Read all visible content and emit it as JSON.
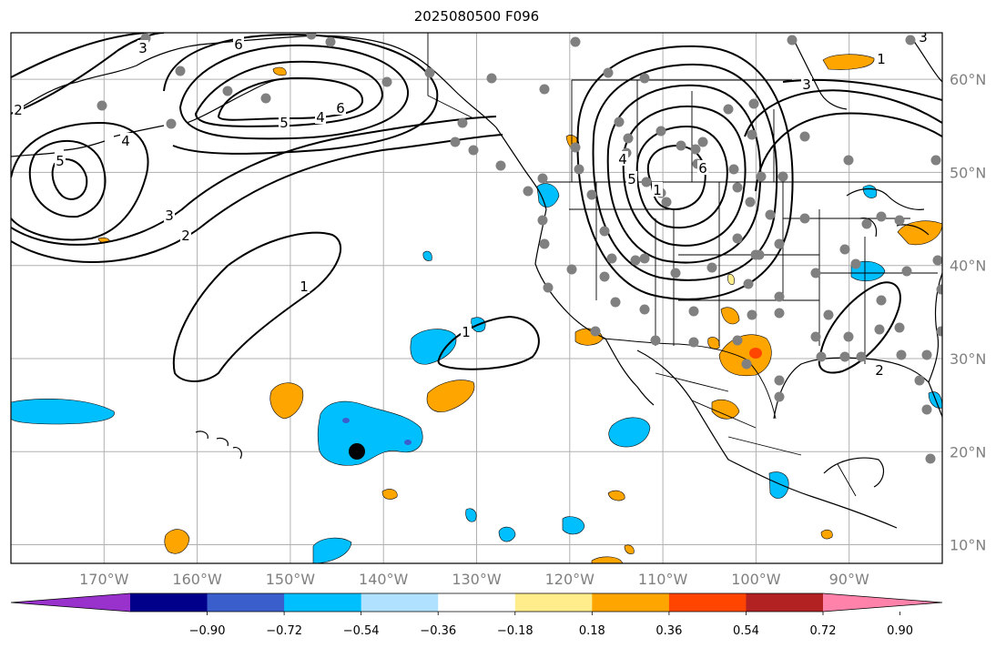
{
  "title": "2025080500 F096",
  "map": {
    "lon_range": [
      -180,
      -80
    ],
    "lat_range": [
      8,
      65
    ],
    "lon_ticks": [
      "170°W",
      "160°W",
      "150°W",
      "140°W",
      "130°W",
      "120°W",
      "110°W",
      "100°W",
      "90°W"
    ],
    "lat_ticks": [
      "60°N",
      "50°N",
      "40°N",
      "30°N",
      "20°N",
      "10°N"
    ],
    "grid": true,
    "contour_labels": [
      "3",
      "6",
      "4",
      "5",
      "6",
      "5",
      "4",
      "3",
      "2",
      "1",
      "1",
      "1",
      "6",
      "5",
      "4",
      "3",
      "2",
      "1",
      "3",
      "2"
    ],
    "station_marker_color": "#808080",
    "highlight_marker_color": "#000000"
  },
  "colorbar": {
    "colors": [
      "#9932CC",
      "#00008B",
      "#3A5FCD",
      "#00BFFF",
      "#B0E2FF",
      "#FFFFFF",
      "#FFEC8B",
      "#FFA500",
      "#FF4500",
      "#B22222",
      "#FF82AB"
    ],
    "tick_labels": [
      "−0.90",
      "−0.72",
      "−0.54",
      "−0.36",
      "−0.18",
      "0.18",
      "0.36",
      "0.54",
      "0.72",
      "0.90"
    ]
  }
}
